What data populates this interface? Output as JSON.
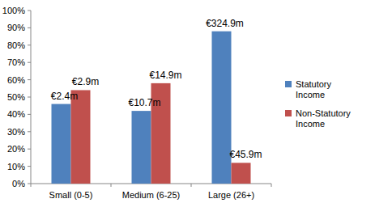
{
  "chart_data": {
    "type": "bar",
    "categories": [
      "Small (0-5)",
      "Medium (6-25)",
      "Large (26+)"
    ],
    "series": [
      {
        "name": "Statutory Income",
        "color": "#4f81bd",
        "values": [
          46,
          42,
          88
        ],
        "amount_labels": [
          "€2.4m",
          "€10.7m",
          "€324.9m"
        ]
      },
      {
        "name": "Non-Statutory Income",
        "color": "#c0504d",
        "values": [
          54,
          58,
          12
        ],
        "amount_labels": [
          "€2.9m",
          "€14.9m",
          "€45.9m"
        ]
      }
    ],
    "ylim": [
      0,
      100
    ],
    "yticks": [
      {
        "value": 0,
        "label": "0%"
      },
      {
        "value": 10,
        "label": "10%"
      },
      {
        "value": 20,
        "label": "20%"
      },
      {
        "value": 30,
        "label": "30%"
      },
      {
        "value": 40,
        "label": "40%"
      },
      {
        "value": 50,
        "label": "50%"
      },
      {
        "value": 60,
        "label": "60%"
      },
      {
        "value": 70,
        "label": "70%"
      },
      {
        "value": 80,
        "label": "80%"
      },
      {
        "value": 90,
        "label": "90%"
      },
      {
        "value": 100,
        "label": "100%"
      }
    ],
    "grid": false,
    "legend": "right"
  }
}
